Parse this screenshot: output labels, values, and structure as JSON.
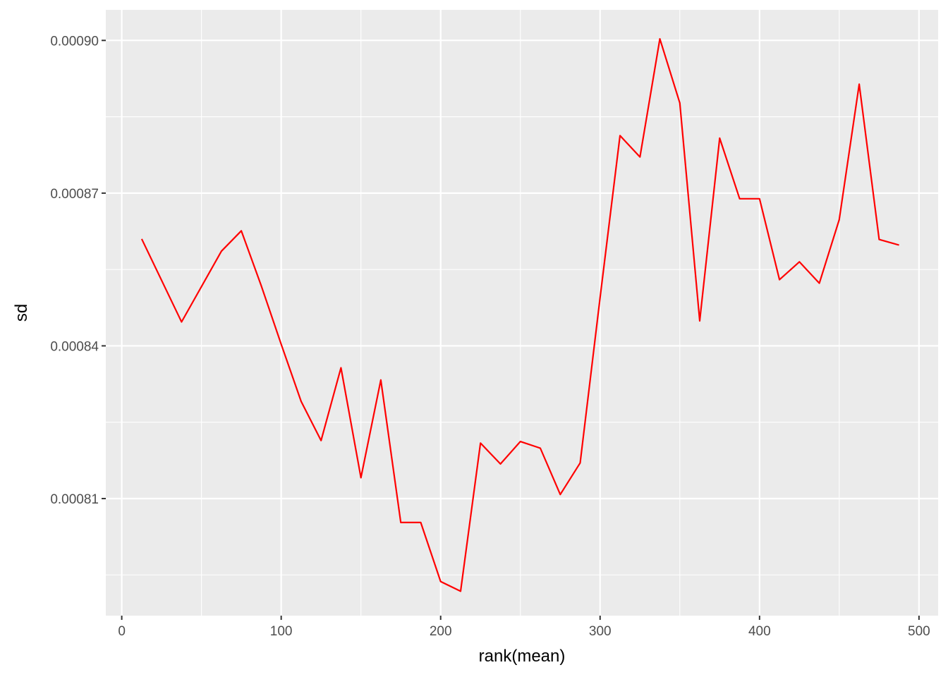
{
  "chart_data": {
    "type": "line",
    "title": "",
    "xlabel": "rank(mean)",
    "ylabel": "sd",
    "xlim": [
      -10,
      512
    ],
    "ylim": [
      0.000787,
      0.000906
    ],
    "x_ticks": [
      0,
      100,
      200,
      300,
      400,
      500
    ],
    "x_tick_labels": [
      "0",
      "100",
      "200",
      "300",
      "400",
      "500"
    ],
    "y_ticks": [
      0.00081,
      0.00084,
      0.00087,
      0.0009
    ],
    "y_tick_labels": [
      "0.00081",
      "0.00084",
      "0.00087",
      "0.00090"
    ],
    "y_minor_ticks": [
      0.000795,
      0.000825,
      0.000855,
      0.000885
    ],
    "x_minor_ticks": [
      50,
      150,
      250,
      350,
      450
    ],
    "grid": true,
    "background": "#ebebeb",
    "grid_color": "#ffffff",
    "series": [
      {
        "color": "#ff0000",
        "x": [
          12.5,
          37.5,
          62.5,
          75,
          87.5,
          100,
          112.5,
          125,
          137.5,
          150,
          162.5,
          175,
          187.5,
          200,
          212.5,
          225,
          237.5,
          250,
          262.5,
          275,
          287.5,
          300,
          312.5,
          325,
          337.5,
          350,
          362.5,
          375,
          387.5,
          400,
          412.5,
          425,
          437.5,
          450,
          462.5,
          475,
          487.5
        ],
        "y": [
          0.000861,
          0.0008447,
          0.0008586,
          0.0008626,
          0.0008518,
          0.0008403,
          0.0008291,
          0.0008214,
          0.0008357,
          0.0008141,
          0.0008333,
          0.0008053,
          0.0008053,
          0.0007937,
          0.0007918,
          0.0008209,
          0.0008168,
          0.0008212,
          0.0008199,
          0.0008108,
          0.000817,
          0.0008495,
          0.0008813,
          0.0008771,
          0.0009003,
          0.0008877,
          0.0008449,
          0.0008808,
          0.0008689,
          0.0008689,
          0.000853,
          0.0008565,
          0.0008523,
          0.0008648,
          0.0008914,
          0.0008609,
          0.0008598
        ]
      }
    ]
  }
}
